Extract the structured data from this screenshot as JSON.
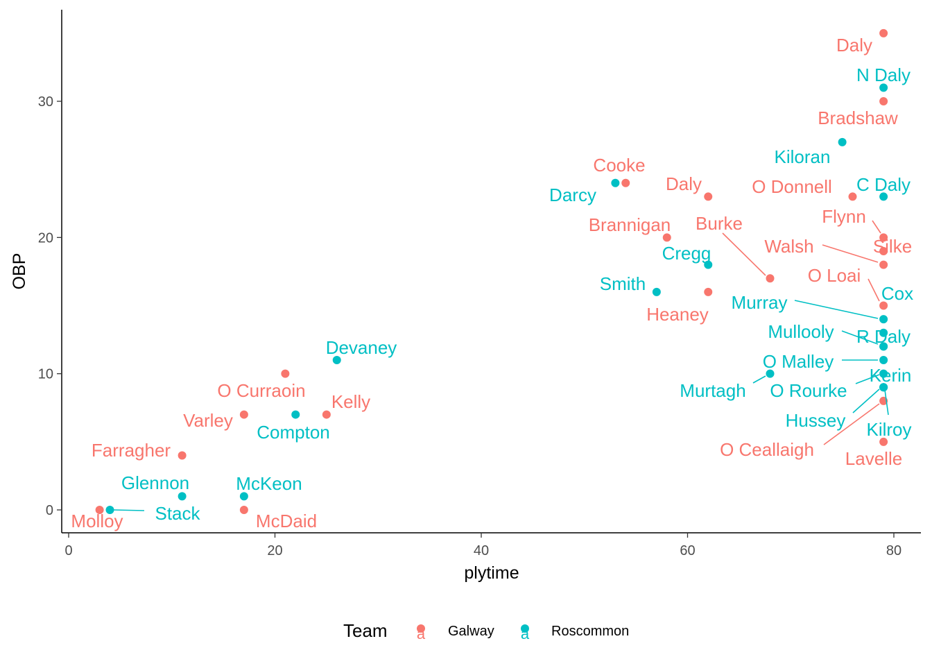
{
  "chart_data": {
    "type": "scatter",
    "xlabel": "plytime",
    "ylabel": "OBP",
    "xlim": [
      -1,
      83
    ],
    "ylim": [
      -1.5,
      36.5
    ],
    "x_ticks": [
      0,
      20,
      40,
      60,
      80
    ],
    "y_ticks": [
      0,
      10,
      20,
      30
    ],
    "grid": false,
    "legend": {
      "title": "Team",
      "position": "bottom",
      "key_glyph": "a"
    },
    "colors": {
      "Galway": "#F8766D",
      "Roscommon": "#00BFC4"
    },
    "series": [
      {
        "name": "Galway",
        "points": [
          {
            "x": 79,
            "y": 35,
            "label": "Daly"
          },
          {
            "x": 79,
            "y": 30,
            "label": "Bradshaw"
          },
          {
            "x": 54,
            "y": 24,
            "label": "Cooke"
          },
          {
            "x": 62,
            "y": 23,
            "label": "Daly"
          },
          {
            "x": 76,
            "y": 23,
            "label": "O Donnell"
          },
          {
            "x": 79,
            "y": 20,
            "label": "Flynn"
          },
          {
            "x": 58,
            "y": 20,
            "label": "Brannigan"
          },
          {
            "x": 68,
            "y": 17,
            "label": "Burke"
          },
          {
            "x": 79,
            "y": 19,
            "label": "Silke"
          },
          {
            "x": 79,
            "y": 18,
            "label": "Walsh"
          },
          {
            "x": 79,
            "y": 15,
            "label": "O Loai"
          },
          {
            "x": 62,
            "y": 16,
            "label": "Heaney"
          },
          {
            "x": 79,
            "y": 8,
            "label": "O Ceallaigh"
          },
          {
            "x": 79,
            "y": 5,
            "label": "Lavelle"
          },
          {
            "x": 21,
            "y": 10,
            "label": "O Curraoin"
          },
          {
            "x": 17,
            "y": 7,
            "label": "Varley"
          },
          {
            "x": 25,
            "y": 7,
            "label": "Kelly"
          },
          {
            "x": 11,
            "y": 4,
            "label": "Farragher"
          },
          {
            "x": 3,
            "y": 0,
            "label": "Molloy"
          },
          {
            "x": 17,
            "y": 0,
            "label": "McDaid"
          }
        ]
      },
      {
        "name": "Roscommon",
        "points": [
          {
            "x": 79,
            "y": 31,
            "label": "N Daly"
          },
          {
            "x": 75,
            "y": 27,
            "label": "Kiloran"
          },
          {
            "x": 79,
            "y": 23,
            "label": "C Daly"
          },
          {
            "x": 53,
            "y": 24,
            "label": "Darcy"
          },
          {
            "x": 62,
            "y": 18,
            "label": "Cregg"
          },
          {
            "x": 57,
            "y": 16,
            "label": "Smith"
          },
          {
            "x": 79,
            "y": 14,
            "label": "Murray"
          },
          {
            "x": 79,
            "y": 13,
            "label": "Cox"
          },
          {
            "x": 79,
            "y": 12,
            "label": "Mullooly"
          },
          {
            "x": 79,
            "y": 12,
            "label": "R Daly"
          },
          {
            "x": 79,
            "y": 11,
            "label": "O Malley"
          },
          {
            "x": 68,
            "y": 10,
            "label": "Murtagh"
          },
          {
            "x": 79,
            "y": 10,
            "label": "Kerin"
          },
          {
            "x": 79,
            "y": 9,
            "label": "O Rourke"
          },
          {
            "x": 79,
            "y": 9,
            "label": "Hussey"
          },
          {
            "x": 79,
            "y": 9,
            "label": "Kilroy"
          },
          {
            "x": 26,
            "y": 11,
            "label": "Devaney"
          },
          {
            "x": 22,
            "y": 7,
            "label": "Compton"
          },
          {
            "x": 11,
            "y": 1,
            "label": "Glennon"
          },
          {
            "x": 17,
            "y": 1,
            "label": "McKeon"
          },
          {
            "x": 4,
            "y": 0,
            "label": "Stack"
          }
        ]
      }
    ]
  }
}
